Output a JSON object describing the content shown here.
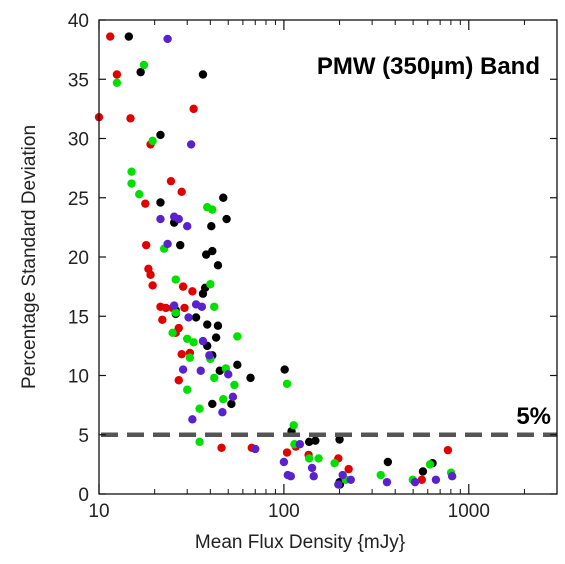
{
  "chart_data": {
    "type": "scatter",
    "title": "PMW (350µm) Band",
    "xlabel": "Mean Flux Density  {mJy}",
    "ylabel": "Percentage Standard Deviation",
    "xscale": "log",
    "xlim": [
      10,
      3000
    ],
    "ylim": [
      0,
      40
    ],
    "x_ticks": [
      10,
      100,
      1000
    ],
    "x_tick_labels": [
      "10",
      "100",
      "1000"
    ],
    "y_ticks": [
      0,
      5,
      10,
      15,
      20,
      25,
      30,
      35,
      40
    ],
    "y_tick_labels": [
      "0",
      "5",
      "10",
      "15",
      "20",
      "25",
      "30",
      "35",
      "40"
    ],
    "grid": false,
    "reference_line": {
      "y": 5,
      "label": "5%",
      "style": "dashed",
      "color": "#555555"
    },
    "series": [
      {
        "color": "#000000",
        "points": [
          [
            14.5,
            38.6
          ],
          [
            16.8,
            35.6
          ],
          [
            36.5,
            35.4
          ],
          [
            21.5,
            30.3
          ],
          [
            47,
            25.0
          ],
          [
            21.5,
            24.6
          ],
          [
            49,
            23.2
          ],
          [
            40.5,
            22.6
          ],
          [
            25.5,
            22.9
          ],
          [
            27.5,
            21.0
          ],
          [
            41,
            20.5
          ],
          [
            38,
            20.2
          ],
          [
            44,
            19.3
          ],
          [
            37.5,
            17.4
          ],
          [
            36.5,
            16.9
          ],
          [
            33.5,
            14.9
          ],
          [
            26,
            15.2
          ],
          [
            26,
            15.5
          ],
          [
            38.5,
            14.3
          ],
          [
            44,
            14.2
          ],
          [
            43,
            13.2
          ],
          [
            38.5,
            12.5
          ],
          [
            41,
            11.7
          ],
          [
            66,
            9.8
          ],
          [
            45,
            10.4
          ],
          [
            101,
            10.5
          ],
          [
            56,
            10.9
          ],
          [
            52,
            7.6
          ],
          [
            41,
            7.6
          ],
          [
            110,
            5.3
          ],
          [
            137,
            4.4
          ],
          [
            148,
            4.5
          ],
          [
            200,
            4.6
          ],
          [
            365,
            2.7
          ],
          [
            565,
            1.9
          ],
          [
            637,
            2.6
          ],
          [
            201,
            0.8
          ],
          [
            200,
            1.0
          ]
        ]
      },
      {
        "color": "#e00000",
        "points": [
          [
            11.5,
            38.6
          ],
          [
            12.5,
            35.4
          ],
          [
            10,
            31.8
          ],
          [
            14.8,
            31.7
          ],
          [
            32.5,
            32.5
          ],
          [
            19,
            29.5
          ],
          [
            24.5,
            26.4
          ],
          [
            28,
            25.5
          ],
          [
            17.8,
            24.5
          ],
          [
            18,
            21.0
          ],
          [
            18.5,
            19.0
          ],
          [
            19,
            18.5
          ],
          [
            19.5,
            17.6
          ],
          [
            28.5,
            17.5
          ],
          [
            32,
            17.1
          ],
          [
            21.5,
            15.8
          ],
          [
            23,
            15.7
          ],
          [
            25,
            15.7
          ],
          [
            29,
            15.7
          ],
          [
            22,
            14.7
          ],
          [
            27,
            14.0
          ],
          [
            26,
            13.6
          ],
          [
            28,
            11.8
          ],
          [
            31,
            11.9
          ],
          [
            27,
            9.6
          ],
          [
            46,
            3.9
          ],
          [
            67,
            3.9
          ],
          [
            104,
            3.5
          ],
          [
            116,
            4.0
          ],
          [
            136,
            3.3
          ],
          [
            197,
            3.0
          ],
          [
            224,
            2.1
          ],
          [
            557,
            1.2
          ],
          [
            771,
            3.7
          ]
        ]
      },
      {
        "color": "#00e000",
        "points": [
          [
            12.5,
            34.7
          ],
          [
            17.5,
            36.2
          ],
          [
            19.5,
            29.8
          ],
          [
            15,
            27.2
          ],
          [
            15,
            26.2
          ],
          [
            16.5,
            25.3
          ],
          [
            38.5,
            24.2
          ],
          [
            41,
            24.0
          ],
          [
            22.5,
            20.7
          ],
          [
            26,
            18.1
          ],
          [
            40,
            17.7
          ],
          [
            42,
            15.8
          ],
          [
            26,
            15.3
          ],
          [
            25,
            13.6
          ],
          [
            30,
            13.1
          ],
          [
            32.5,
            12.8
          ],
          [
            56,
            13.3
          ],
          [
            31,
            11.5
          ],
          [
            40,
            11.4
          ],
          [
            54,
            9.2
          ],
          [
            48.5,
            10.6
          ],
          [
            30,
            8.8
          ],
          [
            42,
            9.8
          ],
          [
            47,
            8.0
          ],
          [
            35,
            7.2
          ],
          [
            35,
            4.4
          ],
          [
            104,
            9.3
          ],
          [
            113,
            5.8
          ],
          [
            114,
            4.2
          ],
          [
            137,
            3.0
          ],
          [
            154,
            3.0
          ],
          [
            188,
            2.6
          ],
          [
            216,
            1.2
          ],
          [
            334,
            1.6
          ],
          [
            498,
            1.2
          ],
          [
            617,
            2.5
          ],
          [
            802,
            1.8
          ]
        ]
      },
      {
        "color": "#5a22cc",
        "points": [
          [
            23.5,
            38.4
          ],
          [
            31.5,
            29.5
          ],
          [
            21.5,
            23.2
          ],
          [
            25.5,
            23.4
          ],
          [
            27,
            23.2
          ],
          [
            30,
            22.6
          ],
          [
            23.5,
            21.1
          ],
          [
            33.5,
            16.0
          ],
          [
            36,
            15.8
          ],
          [
            25.5,
            15.9
          ],
          [
            30.5,
            14.9
          ],
          [
            36.5,
            12.9
          ],
          [
            39.5,
            11.7
          ],
          [
            35.5,
            10.4
          ],
          [
            28.5,
            10.5
          ],
          [
            50,
            10.1
          ],
          [
            53,
            8.2
          ],
          [
            46.5,
            6.9
          ],
          [
            32,
            6.3
          ],
          [
            70,
            3.8
          ],
          [
            100,
            2.7
          ],
          [
            122,
            4.2
          ],
          [
            105,
            1.6
          ],
          [
            109,
            1.5
          ],
          [
            142,
            2.2
          ],
          [
            145,
            1.5
          ],
          [
            197,
            0.8
          ],
          [
            208,
            1.6
          ],
          [
            230,
            1.2
          ],
          [
            361,
            1.0
          ],
          [
            512,
            1.0
          ],
          [
            664,
            1.2
          ],
          [
            813,
            1.5
          ]
        ]
      }
    ]
  }
}
